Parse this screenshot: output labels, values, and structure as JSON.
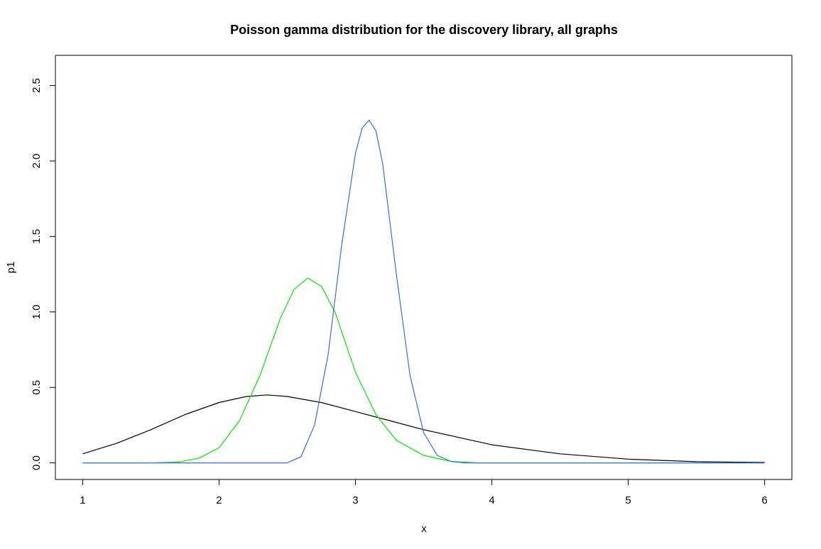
{
  "chart_data": {
    "type": "line",
    "title": "Poisson gamma distribution for the discovery library, all graphs",
    "xlabel": "x",
    "ylabel": "p1",
    "xlim": [
      0.8,
      6.2
    ],
    "ylim": [
      -0.11,
      2.7
    ],
    "x_ticks": [
      "1",
      "2",
      "3",
      "4",
      "5",
      "6"
    ],
    "y_ticks": [
      "0.0",
      "0.5",
      "1.0",
      "1.5",
      "2.0",
      "2.5"
    ],
    "grid": false,
    "legend": "none",
    "x": [
      1.0,
      1.25,
      1.5,
      1.75,
      2.0,
      2.25,
      2.5,
      2.75,
      3.0,
      3.25,
      3.5,
      3.75,
      4.0,
      4.5,
      5.0,
      5.5,
      6.0
    ],
    "series": [
      {
        "color": "#000000",
        "x": [
          1.0,
          1.25,
          1.5,
          1.75,
          2.0,
          2.2,
          2.35,
          2.5,
          2.75,
          3.0,
          3.25,
          3.5,
          3.75,
          4.0,
          4.5,
          5.0,
          5.5,
          6.0
        ],
        "values": [
          0.06,
          0.13,
          0.22,
          0.32,
          0.4,
          0.44,
          0.45,
          0.44,
          0.4,
          0.34,
          0.28,
          0.22,
          0.17,
          0.12,
          0.06,
          0.025,
          0.008,
          0.003
        ]
      },
      {
        "color": "#00ee00",
        "x": [
          1.0,
          1.5,
          1.7,
          1.85,
          2.0,
          2.15,
          2.3,
          2.45,
          2.55,
          2.65,
          2.75,
          2.85,
          3.0,
          3.15,
          3.3,
          3.5,
          3.7,
          3.9,
          6.0
        ],
        "values": [
          0.0,
          0.0,
          0.005,
          0.03,
          0.1,
          0.28,
          0.58,
          0.96,
          1.15,
          1.225,
          1.17,
          1.0,
          0.6,
          0.32,
          0.15,
          0.05,
          0.01,
          0.0,
          0.0
        ]
      },
      {
        "color": "#4169e1",
        "x": [
          1.0,
          2.5,
          2.6,
          2.7,
          2.8,
          2.9,
          3.0,
          3.05,
          3.1,
          3.15,
          3.2,
          3.3,
          3.4,
          3.5,
          3.6,
          3.7,
          3.8,
          6.0
        ],
        "values": [
          0.0,
          0.0,
          0.04,
          0.25,
          0.72,
          1.45,
          2.05,
          2.22,
          2.27,
          2.2,
          1.98,
          1.25,
          0.58,
          0.2,
          0.05,
          0.01,
          0.0,
          0.0
        ]
      }
    ]
  }
}
